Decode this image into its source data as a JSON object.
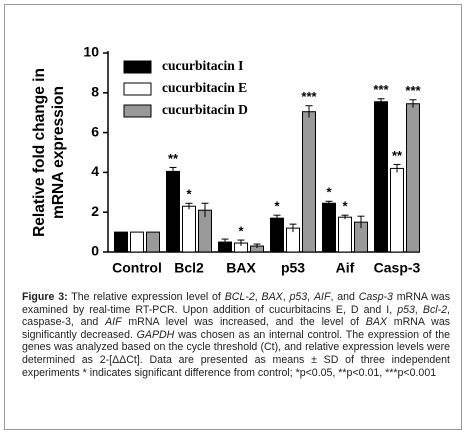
{
  "chart_data": {
    "type": "bar",
    "ylabel": [
      "Relative fold change in",
      "mRNA expression"
    ],
    "categories": [
      "Control",
      "Bcl2",
      "BAX",
      "p53",
      "Aif",
      "Casp-3"
    ],
    "series": [
      {
        "name": "cucurbitacin I",
        "color": "#000000",
        "values": [
          1.0,
          4.05,
          0.5,
          1.7,
          2.45,
          7.55
        ],
        "errors": [
          null,
          0.2,
          0.15,
          0.15,
          0.1,
          0.15
        ],
        "significance": [
          null,
          "**",
          null,
          "*",
          "*",
          "***"
        ]
      },
      {
        "name": "cucurbitacin E",
        "color": "#ffffff",
        "values": [
          1.0,
          2.3,
          0.45,
          1.2,
          1.75,
          4.2
        ],
        "errors": [
          null,
          0.15,
          0.15,
          0.2,
          0.1,
          0.2
        ],
        "significance": [
          null,
          "*",
          "*",
          null,
          "*",
          "**"
        ]
      },
      {
        "name": "cucurbitacin D",
        "color": "#999999",
        "values": [
          1.0,
          2.1,
          0.3,
          7.05,
          1.5,
          7.45
        ],
        "errors": [
          null,
          0.35,
          0.1,
          0.3,
          0.3,
          0.2
        ],
        "significance": [
          null,
          null,
          null,
          "***",
          null,
          "***"
        ]
      }
    ],
    "ylim": [
      0,
      10
    ],
    "yticks": [
      0,
      2,
      4,
      6,
      8,
      10
    ],
    "legend": "top-left"
  },
  "caption": {
    "segments": [
      "Figure 3:",
      " The relative expression level of ",
      "BCL-2",
      ", ",
      "BAX",
      ", ",
      "p53",
      ", ",
      "AIF",
      ", and ",
      "Casp-3",
      " mRNA was examined by real-time RT-PCR. Upon addition of cucurbitacins E, D and I, ",
      "p53",
      ", ",
      "Bcl-2",
      ", caspase-3, and ",
      "AIF",
      " mRNA level was increased, and the level of ",
      "BAX",
      " mRNA was significantly decreased. ",
      "GAPDH",
      " was chosen as an internal control. The expression of the genes was analyzed based on the cycle threshold (Ct), and relative expression levels were determined as 2-[ΔΔCt]. Data are presented as means ± SD of three independent experiments * indicates significant difference from control; *p<0.05, **p<0.01, ***p<0.001"
    ]
  }
}
